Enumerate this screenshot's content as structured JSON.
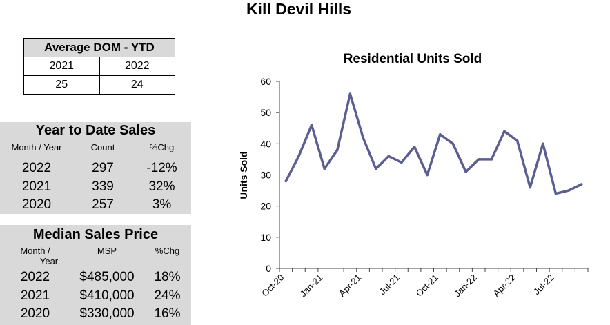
{
  "page_title": "Kill Devil Hills",
  "dom": {
    "title": "Average DOM - YTD",
    "years": [
      "2021",
      "2022"
    ],
    "values": [
      "25",
      "24"
    ]
  },
  "ytd_sales": {
    "title": "Year to Date Sales",
    "headers": [
      "Month / Year",
      "Count",
      "%Chg"
    ],
    "rows": [
      {
        "year": "2022",
        "count": "297",
        "chg": "-12%"
      },
      {
        "year": "2021",
        "count": "339",
        "chg": "32%"
      },
      {
        "year": "2020",
        "count": "257",
        "chg": "3%"
      }
    ]
  },
  "median_price": {
    "title": "Median Sales Price",
    "headers": [
      "Month /",
      "Year",
      "MSP",
      "%Chg"
    ],
    "rows": [
      {
        "year": "2022",
        "msp": "$485,000",
        "chg": "18%"
      },
      {
        "year": "2021",
        "msp": "$410,000",
        "chg": "24%"
      },
      {
        "year": "2020",
        "msp": "$330,000",
        "chg": "16%"
      }
    ]
  },
  "chart_data": {
    "type": "line",
    "title": "Residential Units Sold",
    "xlabel": "",
    "ylabel": "Units Sold",
    "ylim": [
      0,
      60
    ],
    "yticks": [
      "0",
      "10",
      "20",
      "30",
      "40",
      "50",
      "60"
    ],
    "x": [
      "Oct-20",
      "Nov-20",
      "Dec-20",
      "Jan-21",
      "Feb-21",
      "Mar-21",
      "Apr-21",
      "May-21",
      "Jun-21",
      "Jul-21",
      "Aug-21",
      "Sep-21",
      "Oct-21",
      "Nov-21",
      "Dec-21",
      "Jan-22",
      "Feb-22",
      "Mar-22",
      "Apr-22",
      "May-22",
      "Jun-22",
      "Jul-22",
      "Aug-22",
      "Sep-22"
    ],
    "xtick_labels": [
      "Oct-20",
      "Jan-21",
      "Apr-21",
      "Jul-21",
      "Oct-21",
      "Jan-22",
      "Apr-22",
      "Jul-22"
    ],
    "series": [
      {
        "name": "Units Sold",
        "color": "#5b5e91",
        "values": [
          28,
          36,
          46,
          32,
          38,
          56,
          42,
          32,
          36,
          34,
          39,
          30,
          43,
          40,
          31,
          35,
          35,
          44,
          41,
          26,
          40,
          24,
          25,
          27
        ]
      }
    ],
    "grid": false
  }
}
